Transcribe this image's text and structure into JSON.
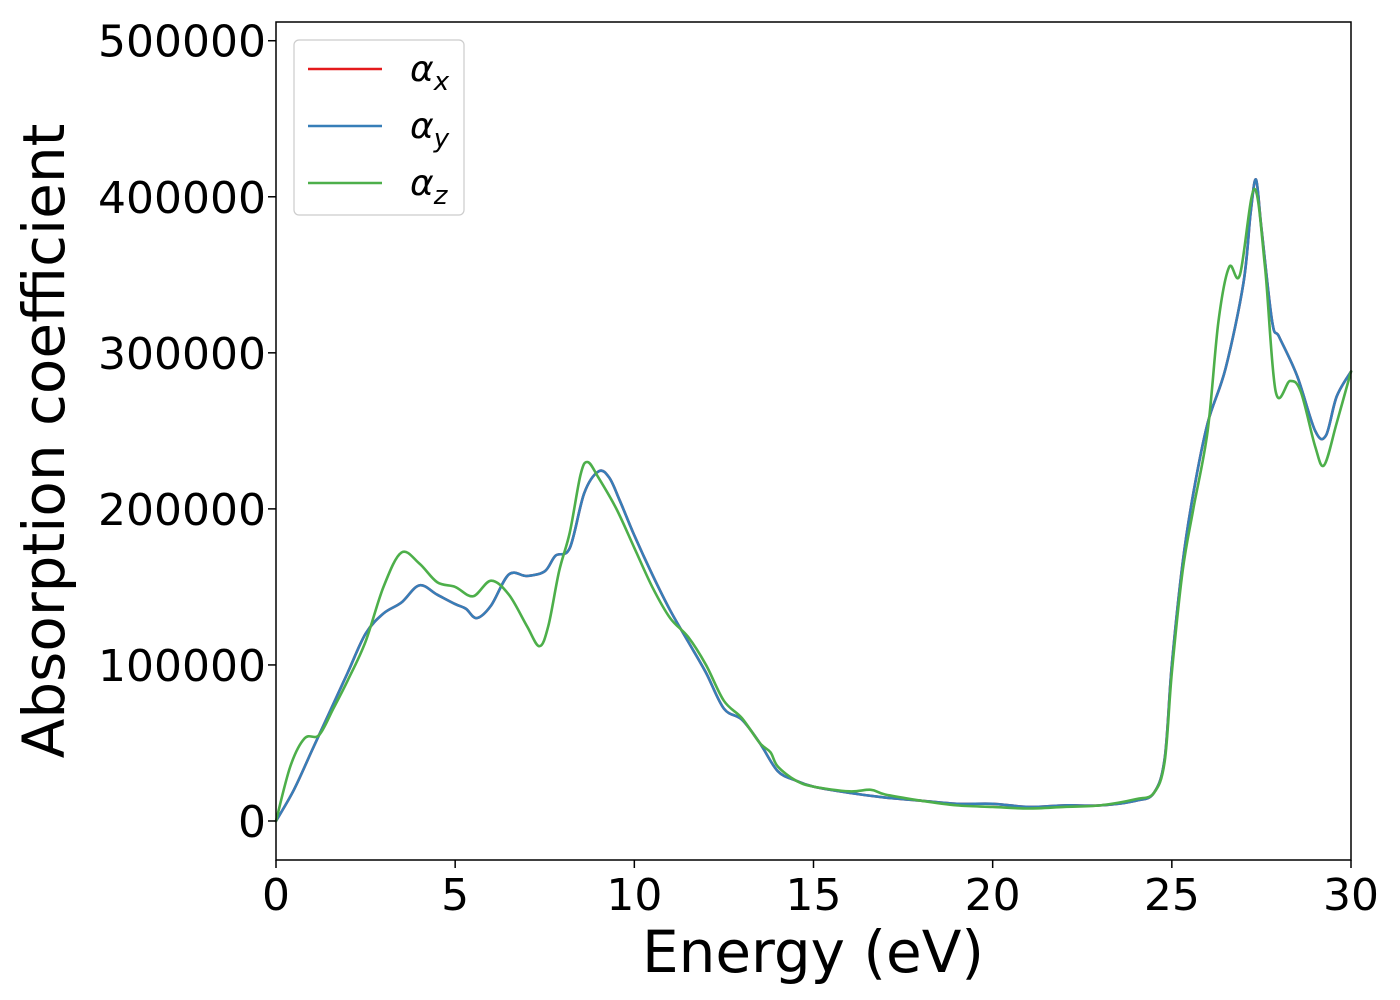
{
  "chart_data": {
    "type": "line",
    "xlabel": "Energy (eV)",
    "ylabel": "Absorption coefficient",
    "xlim": [
      0,
      30
    ],
    "ylim": [
      -25000,
      512000
    ],
    "xticks": [
      0,
      5,
      10,
      15,
      20,
      25,
      30
    ],
    "yticks": [
      0,
      100000,
      200000,
      300000,
      400000,
      500000
    ],
    "grid": false,
    "legend_position": "top-left",
    "series": [
      {
        "name": "α",
        "subscript": "x",
        "color": "#e41a1c",
        "x": [
          0,
          0.5,
          1.0,
          1.5,
          2.0,
          2.5,
          3.0,
          3.5,
          4.0,
          4.5,
          5.0,
          5.3,
          5.6,
          6.0,
          6.5,
          7.0,
          7.5,
          7.8,
          8.2,
          8.6,
          9.0,
          9.3,
          9.6,
          10.0,
          10.5,
          11.0,
          11.5,
          12.0,
          12.5,
          13.0,
          13.5,
          14.0,
          14.5,
          15.0,
          16.0,
          17.0,
          18.0,
          19.0,
          20.0,
          21.0,
          22.0,
          23.0,
          24.0,
          24.5,
          24.8,
          25.0,
          25.3,
          25.6,
          26.0,
          26.5,
          27.0,
          27.2,
          27.35,
          27.5,
          27.8,
          28.0,
          28.5,
          29.0,
          29.3,
          29.6,
          30.0
        ],
        "values": [
          0,
          20000,
          45000,
          70000,
          95000,
          120000,
          133000,
          140000,
          151000,
          145000,
          139000,
          136000,
          130000,
          138000,
          158000,
          157000,
          160000,
          170000,
          175000,
          210000,
          224000,
          220000,
          205000,
          183000,
          158000,
          135000,
          115000,
          95000,
          72000,
          65000,
          50000,
          32000,
          26000,
          22000,
          18000,
          15000,
          13000,
          11000,
          11000,
          9000,
          10000,
          10000,
          13000,
          18000,
          40000,
          100000,
          165000,
          210000,
          255000,
          290000,
          345000,
          390000,
          411000,
          380000,
          320000,
          310000,
          285000,
          250000,
          247000,
          272000,
          288000
        ]
      },
      {
        "name": "α",
        "subscript": "y",
        "color": "#377eb8",
        "x": [
          0,
          0.5,
          1.0,
          1.5,
          2.0,
          2.5,
          3.0,
          3.5,
          4.0,
          4.5,
          5.0,
          5.3,
          5.6,
          6.0,
          6.5,
          7.0,
          7.5,
          7.8,
          8.2,
          8.6,
          9.0,
          9.3,
          9.6,
          10.0,
          10.5,
          11.0,
          11.5,
          12.0,
          12.5,
          13.0,
          13.5,
          14.0,
          14.5,
          15.0,
          16.0,
          17.0,
          18.0,
          19.0,
          20.0,
          21.0,
          22.0,
          23.0,
          24.0,
          24.5,
          24.8,
          25.0,
          25.3,
          25.6,
          26.0,
          26.5,
          27.0,
          27.2,
          27.35,
          27.5,
          27.8,
          28.0,
          28.5,
          29.0,
          29.3,
          29.6,
          30.0
        ],
        "values": [
          0,
          20000,
          45000,
          70000,
          95000,
          120000,
          133000,
          140000,
          151000,
          145000,
          139000,
          136000,
          130000,
          138000,
          158000,
          157000,
          160000,
          170000,
          175000,
          210000,
          224000,
          220000,
          205000,
          183000,
          158000,
          135000,
          115000,
          95000,
          72000,
          65000,
          50000,
          32000,
          26000,
          22000,
          18000,
          15000,
          13000,
          11000,
          11000,
          9000,
          10000,
          10000,
          13000,
          18000,
          40000,
          100000,
          165000,
          210000,
          255000,
          290000,
          345000,
          390000,
          411000,
          380000,
          320000,
          310000,
          285000,
          250000,
          247000,
          272000,
          288000
        ]
      },
      {
        "name": "α",
        "subscript": "z",
        "color": "#4daf4a",
        "x": [
          0,
          0.4,
          0.8,
          1.2,
          1.6,
          2.0,
          2.5,
          3.0,
          3.5,
          4.0,
          4.5,
          5.0,
          5.5,
          6.0,
          6.5,
          7.0,
          7.35,
          7.6,
          7.9,
          8.2,
          8.5,
          8.7,
          9.0,
          9.5,
          10.0,
          10.5,
          11.0,
          11.5,
          12.0,
          12.5,
          13.0,
          13.5,
          13.8,
          14.0,
          14.5,
          15.0,
          16.0,
          16.6,
          17.0,
          18.0,
          19.0,
          20.0,
          21.0,
          22.0,
          23.0,
          24.0,
          24.5,
          24.8,
          25.0,
          25.3,
          25.6,
          26.0,
          26.3,
          26.6,
          26.9,
          27.3,
          27.6,
          27.9,
          28.3,
          28.6,
          29.0,
          29.25,
          29.6,
          30.0
        ],
        "values": [
          0,
          35000,
          53000,
          55000,
          72000,
          90000,
          115000,
          150000,
          172000,
          165000,
          153000,
          150000,
          144000,
          154000,
          145000,
          125000,
          112000,
          125000,
          160000,
          185000,
          222000,
          230000,
          220000,
          200000,
          175000,
          150000,
          130000,
          118000,
          100000,
          77000,
          66000,
          50000,
          44000,
          35000,
          26000,
          22000,
          19000,
          20000,
          17000,
          13000,
          10000,
          9000,
          8000,
          9000,
          10000,
          14000,
          18000,
          38000,
          95000,
          160000,
          200000,
          250000,
          320000,
          355000,
          350000,
          405000,
          355000,
          275000,
          282000,
          275000,
          240000,
          228000,
          255000,
          288000
        ]
      }
    ]
  }
}
